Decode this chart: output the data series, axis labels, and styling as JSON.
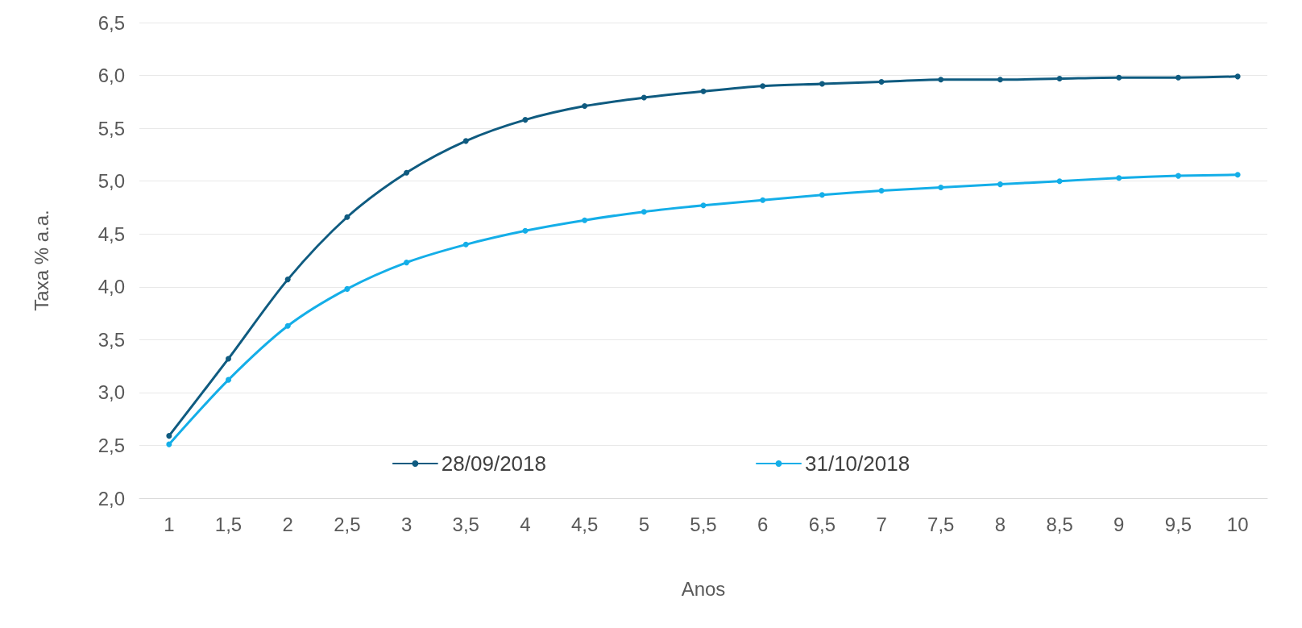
{
  "chart_data": {
    "type": "line",
    "xlabel": "Anos",
    "ylabel": "Taxa % a.a.",
    "categories": [
      "1",
      "1,5",
      "2",
      "2,5",
      "3",
      "3,5",
      "4",
      "4,5",
      "5",
      "5,5",
      "6",
      "6,5",
      "7",
      "7,5",
      "8",
      "8,5",
      "9",
      "9,5",
      "10"
    ],
    "series": [
      {
        "name": "28/09/2018",
        "color": "#0f5b80",
        "values": [
          2.59,
          3.32,
          4.07,
          4.66,
          5.08,
          5.38,
          5.58,
          5.71,
          5.79,
          5.85,
          5.9,
          5.92,
          5.94,
          5.96,
          5.96,
          5.97,
          5.98,
          5.98,
          5.99
        ]
      },
      {
        "name": "31/10/2018",
        "color": "#14aee8",
        "values": [
          2.51,
          3.12,
          3.63,
          3.98,
          4.23,
          4.4,
          4.53,
          4.63,
          4.71,
          4.77,
          4.82,
          4.87,
          4.91,
          4.94,
          4.97,
          5.0,
          5.03,
          5.05,
          5.06
        ]
      }
    ],
    "ylim": [
      2,
      6.5
    ],
    "yticks": [
      {
        "value": 2,
        "label": "2,0"
      },
      {
        "value": 2.5,
        "label": "2,5"
      },
      {
        "value": 3,
        "label": "3,0"
      },
      {
        "value": 3.5,
        "label": "3,5"
      },
      {
        "value": 4,
        "label": "4,0"
      },
      {
        "value": 4.5,
        "label": "4,5"
      },
      {
        "value": 5,
        "label": "5,0"
      },
      {
        "value": 5.5,
        "label": "5,5"
      },
      {
        "value": 6,
        "label": "6,0"
      },
      {
        "value": 6.5,
        "label": "6,5"
      }
    ],
    "grid": "y",
    "legend": "bottom",
    "marker": "circle",
    "line_style": "solid"
  }
}
